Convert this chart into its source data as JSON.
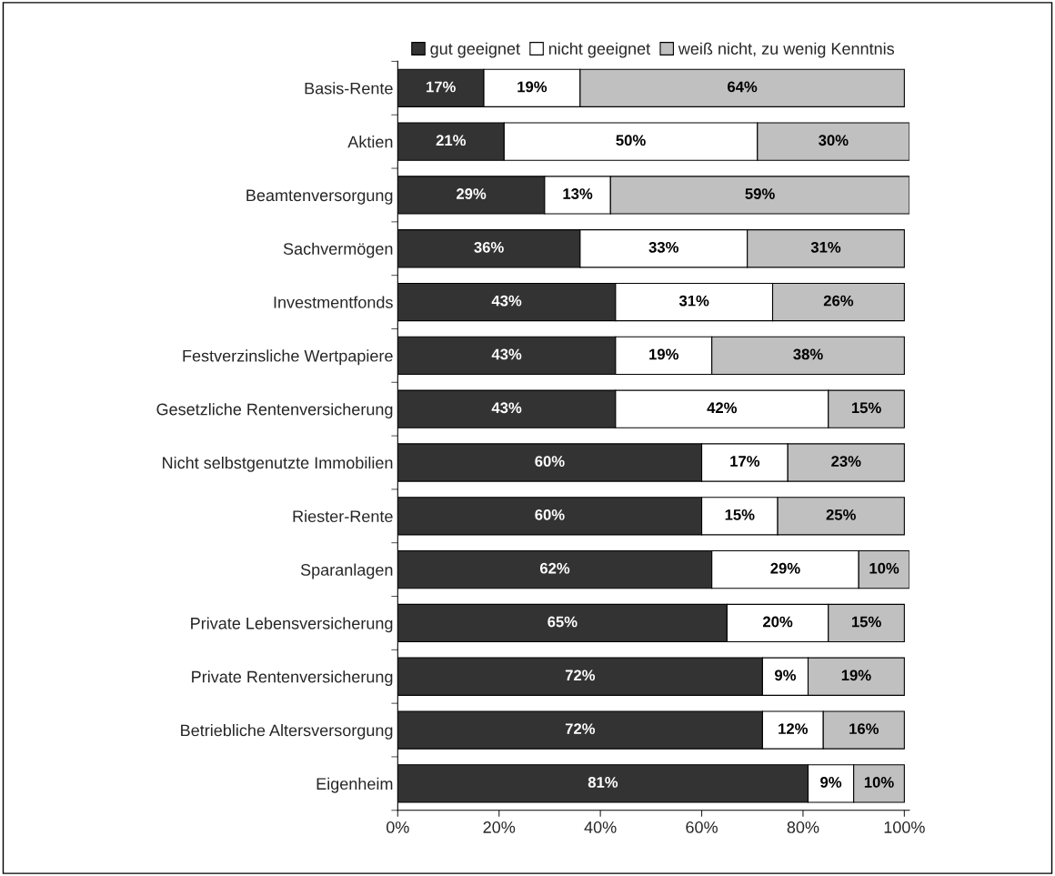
{
  "chart_data": {
    "type": "bar",
    "orientation": "horizontal",
    "stacked": true,
    "legend": "top right",
    "grid": false,
    "categories": [
      "Basis-Rente",
      "Aktien",
      "Beamtenversorgung",
      "Sachvermögen",
      "Investmentfonds",
      "Festverzinsliche Wertpapiere",
      "Gesetzliche Rentenversicherung",
      "Nicht selbstgenutzte Immobilien",
      "Riester-Rente",
      "Sparanlagen",
      "Private Lebensversicherung",
      "Private Rentenversicherung",
      "Betriebliche Altersversorgung",
      "Eigenheim"
    ],
    "series": [
      {
        "name": "gut geeignet",
        "color": "#333333",
        "values": [
          17,
          21,
          29,
          36,
          43,
          43,
          43,
          60,
          60,
          62,
          65,
          72,
          72,
          81
        ],
        "value_labels": [
          "17%",
          "21%",
          "29%",
          "36%",
          "43%",
          "43%",
          "43%",
          "60%",
          "60%",
          "62%",
          "65%",
          "72%",
          "72%",
          "81%"
        ]
      },
      {
        "name": "nicht geeignet",
        "color": "#ffffff",
        "values": [
          19,
          50,
          13,
          33,
          31,
          19,
          42,
          17,
          15,
          29,
          20,
          9,
          12,
          9
        ],
        "value_labels": [
          "19%",
          "50%",
          "13%",
          "33%",
          "31%",
          "19%",
          "42%",
          "17%",
          "15%",
          "29%",
          "20%",
          "9%",
          "12%",
          "9%"
        ]
      },
      {
        "name": "weiß nicht, zu wenig Kenntnis",
        "color": "#c0c0c0",
        "values": [
          64,
          30,
          59,
          31,
          26,
          38,
          15,
          23,
          25,
          10,
          15,
          19,
          16,
          10
        ],
        "value_labels": [
          "64%",
          "30%",
          "59%",
          "31%",
          "26%",
          "38%",
          "15%",
          "23%",
          "25%",
          "10%",
          "15%",
          "19%",
          "16%",
          "10%"
        ]
      }
    ],
    "xlim": [
      0,
      101
    ],
    "xticks": [
      {
        "value": 0,
        "label": "0%"
      },
      {
        "value": 20,
        "label": "20%"
      },
      {
        "value": 40,
        "label": "40%"
      },
      {
        "value": 60,
        "label": "60%"
      },
      {
        "value": 80,
        "label": "80%"
      },
      {
        "value": 100,
        "label": "100%"
      }
    ]
  }
}
